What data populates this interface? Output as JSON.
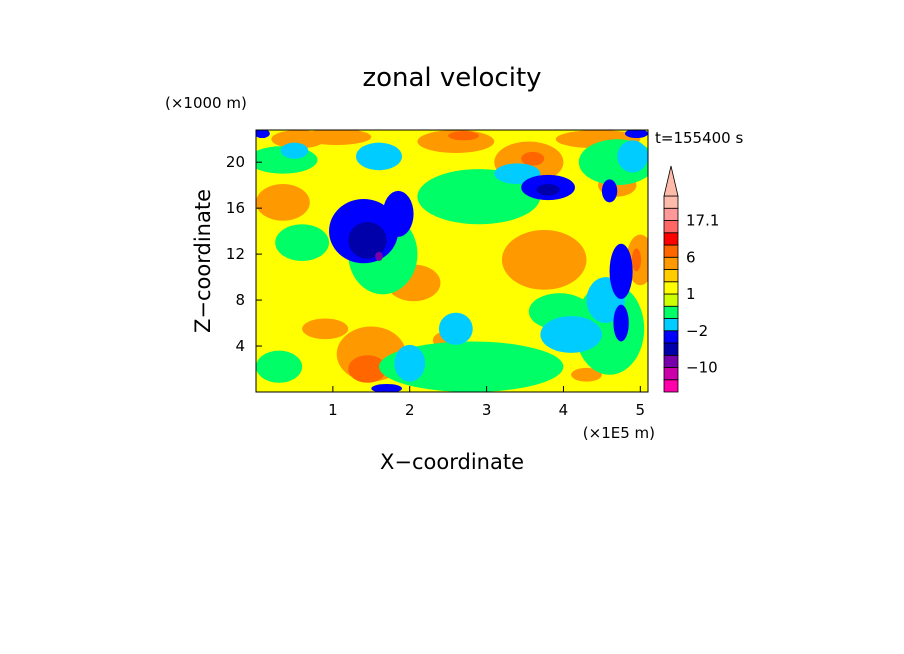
{
  "chart_data": {
    "type": "heatmap",
    "title": "zonal velocity",
    "xlabel": "X−coordinate",
    "ylabel": "Z−coordinate",
    "x_unit": "(×1E5 m)",
    "y_unit": "(×1000 m)",
    "time_label": "t=155400 s",
    "xlim": [
      0,
      5.1
    ],
    "ylim": [
      0,
      22.8
    ],
    "x_ticks": [
      {
        "value": 1,
        "label": "1"
      },
      {
        "value": 2,
        "label": "2"
      },
      {
        "value": 3,
        "label": "3"
      },
      {
        "value": 4,
        "label": "4"
      },
      {
        "value": 5,
        "label": "5"
      }
    ],
    "y_ticks": [
      {
        "value": 4,
        "label": "4"
      },
      {
        "value": 8,
        "label": "8"
      },
      {
        "value": 12,
        "label": "12"
      },
      {
        "value": 16,
        "label": "16"
      },
      {
        "value": 20,
        "label": "20"
      }
    ],
    "background_color": "#ffff00",
    "colorbar": {
      "levels": [
        {
          "color": "#ff00aa"
        },
        {
          "color": "#cc00aa"
        },
        {
          "color": "#7700aa"
        },
        {
          "color": "#0000aa"
        },
        {
          "color": "#0000ff"
        },
        {
          "color": "#00ccff"
        },
        {
          "color": "#00ff66"
        },
        {
          "color": "#ccff00"
        },
        {
          "color": "#ffff00"
        },
        {
          "color": "#ffcc00"
        },
        {
          "color": "#ff9900"
        },
        {
          "color": "#ff6600"
        },
        {
          "color": "#ff0000"
        },
        {
          "color": "#ff6666"
        },
        {
          "color": "#ff9999"
        },
        {
          "color": "#ffbbaa"
        }
      ],
      "tick_labels": [
        {
          "label": "17.1",
          "level": 14
        },
        {
          "label": "6",
          "level": 11
        },
        {
          "label": "1",
          "level": 8
        },
        {
          "label": "−2",
          "level": 5
        },
        {
          "label": "−10",
          "level": 2
        }
      ],
      "arrow_color": "#ffbbaa"
    },
    "regions": [
      {
        "color": "#ff9900",
        "x": 0.35,
        "z": 16.5,
        "rx": 0.35,
        "rz": 1.6
      },
      {
        "color": "#ff9900",
        "x": 0.55,
        "z": 22.0,
        "rx": 0.35,
        "rz": 0.8
      },
      {
        "color": "#ff9900",
        "x": 1.05,
        "z": 22.2,
        "rx": 0.45,
        "rz": 0.7
      },
      {
        "color": "#ff9900",
        "x": 2.6,
        "z": 21.8,
        "rx": 0.5,
        "rz": 1.0
      },
      {
        "color": "#ff9900",
        "x": 3.55,
        "z": 20.0,
        "rx": 0.45,
        "rz": 1.8
      },
      {
        "color": "#ff9900",
        "x": 4.45,
        "z": 22.0,
        "rx": 0.55,
        "rz": 0.8
      },
      {
        "color": "#ff9900",
        "x": 3.75,
        "z": 11.5,
        "rx": 0.55,
        "rz": 2.6
      },
      {
        "color": "#ff9900",
        "x": 2.05,
        "z": 9.5,
        "rx": 0.35,
        "rz": 1.6
      },
      {
        "color": "#ff9900",
        "x": 1.5,
        "z": 3.3,
        "rx": 0.45,
        "rz": 2.4
      },
      {
        "color": "#ff9900",
        "x": 0.9,
        "z": 5.5,
        "rx": 0.3,
        "rz": 0.9
      },
      {
        "color": "#ff9900",
        "x": 2.5,
        "z": 4.5,
        "rx": 0.2,
        "rz": 0.8
      },
      {
        "color": "#ff9900",
        "x": 4.3,
        "z": 1.5,
        "rx": 0.2,
        "rz": 0.6
      },
      {
        "color": "#ff9900",
        "x": 4.7,
        "z": 18.0,
        "rx": 0.25,
        "rz": 1.0
      },
      {
        "color": "#ff9900",
        "x": 5.0,
        "z": 11.5,
        "rx": 0.18,
        "rz": 2.2
      },
      {
        "color": "#ff6600",
        "x": 1.45,
        "z": 2.0,
        "rx": 0.25,
        "rz": 1.2
      },
      {
        "color": "#ff6600",
        "x": 2.7,
        "z": 22.3,
        "rx": 0.2,
        "rz": 0.4
      },
      {
        "color": "#ff6600",
        "x": 3.6,
        "z": 20.3,
        "rx": 0.15,
        "rz": 0.6
      },
      {
        "color": "#ff6600",
        "x": 4.95,
        "z": 11.5,
        "rx": 0.06,
        "rz": 1.0
      },
      {
        "color": "#00ff66",
        "x": 0.35,
        "z": 20.2,
        "rx": 0.45,
        "rz": 1.2
      },
      {
        "color": "#00ff66",
        "x": 0.6,
        "z": 13.0,
        "rx": 0.35,
        "rz": 1.6
      },
      {
        "color": "#00ff66",
        "x": 2.9,
        "z": 17.0,
        "rx": 0.8,
        "rz": 2.4
      },
      {
        "color": "#00ff66",
        "x": 4.7,
        "z": 20.0,
        "rx": 0.5,
        "rz": 2.0
      },
      {
        "color": "#00ff66",
        "x": 2.8,
        "z": 2.2,
        "rx": 1.2,
        "rz": 2.2
      },
      {
        "color": "#00ff66",
        "x": 4.6,
        "z": 5.5,
        "rx": 0.45,
        "rz": 4.0
      },
      {
        "color": "#00ff66",
        "x": 1.65,
        "z": 12.0,
        "rx": 0.45,
        "rz": 3.5
      },
      {
        "color": "#00ff66",
        "x": 0.3,
        "z": 2.2,
        "rx": 0.3,
        "rz": 1.4
      },
      {
        "color": "#00ff66",
        "x": 3.95,
        "z": 7.0,
        "rx": 0.4,
        "rz": 1.6
      },
      {
        "color": "#00ccff",
        "x": 0.5,
        "z": 21.0,
        "rx": 0.18,
        "rz": 0.7
      },
      {
        "color": "#00ccff",
        "x": 1.6,
        "z": 20.5,
        "rx": 0.3,
        "rz": 1.2
      },
      {
        "color": "#00ccff",
        "x": 2.6,
        "z": 5.5,
        "rx": 0.22,
        "rz": 1.4
      },
      {
        "color": "#00ccff",
        "x": 4.1,
        "z": 5.0,
        "rx": 0.4,
        "rz": 1.6
      },
      {
        "color": "#00ccff",
        "x": 4.55,
        "z": 8.0,
        "rx": 0.25,
        "rz": 2.0
      },
      {
        "color": "#00ccff",
        "x": 3.4,
        "z": 19.0,
        "rx": 0.3,
        "rz": 0.9
      },
      {
        "color": "#00ccff",
        "x": 2.0,
        "z": 2.5,
        "rx": 0.2,
        "rz": 1.6
      },
      {
        "color": "#00ccff",
        "x": 4.9,
        "z": 20.5,
        "rx": 0.2,
        "rz": 1.4
      },
      {
        "color": "#0000ff",
        "x": 1.4,
        "z": 14.0,
        "rx": 0.45,
        "rz": 2.8
      },
      {
        "color": "#0000ff",
        "x": 1.85,
        "z": 15.5,
        "rx": 0.2,
        "rz": 2.0
      },
      {
        "color": "#0000ff",
        "x": 3.8,
        "z": 17.8,
        "rx": 0.35,
        "rz": 1.1
      },
      {
        "color": "#0000ff",
        "x": 4.75,
        "z": 10.5,
        "rx": 0.15,
        "rz": 2.4
      },
      {
        "color": "#0000ff",
        "x": 4.6,
        "z": 17.5,
        "rx": 0.1,
        "rz": 1.0
      },
      {
        "color": "#0000ff",
        "x": 0.08,
        "z": 22.5,
        "rx": 0.1,
        "rz": 0.4
      },
      {
        "color": "#0000ff",
        "x": 4.95,
        "z": 22.5,
        "rx": 0.15,
        "rz": 0.4
      },
      {
        "color": "#0000ff",
        "x": 1.7,
        "z": 0.3,
        "rx": 0.2,
        "rz": 0.4
      },
      {
        "color": "#0000ff",
        "x": 4.75,
        "z": 6.0,
        "rx": 0.1,
        "rz": 1.6
      },
      {
        "color": "#0000aa",
        "x": 1.45,
        "z": 13.2,
        "rx": 0.25,
        "rz": 1.6
      },
      {
        "color": "#0000aa",
        "x": 3.8,
        "z": 17.6,
        "rx": 0.15,
        "rz": 0.5
      },
      {
        "color": "#7700aa",
        "x": 1.6,
        "z": 11.8,
        "rx": 0.05,
        "rz": 0.4
      }
    ]
  }
}
